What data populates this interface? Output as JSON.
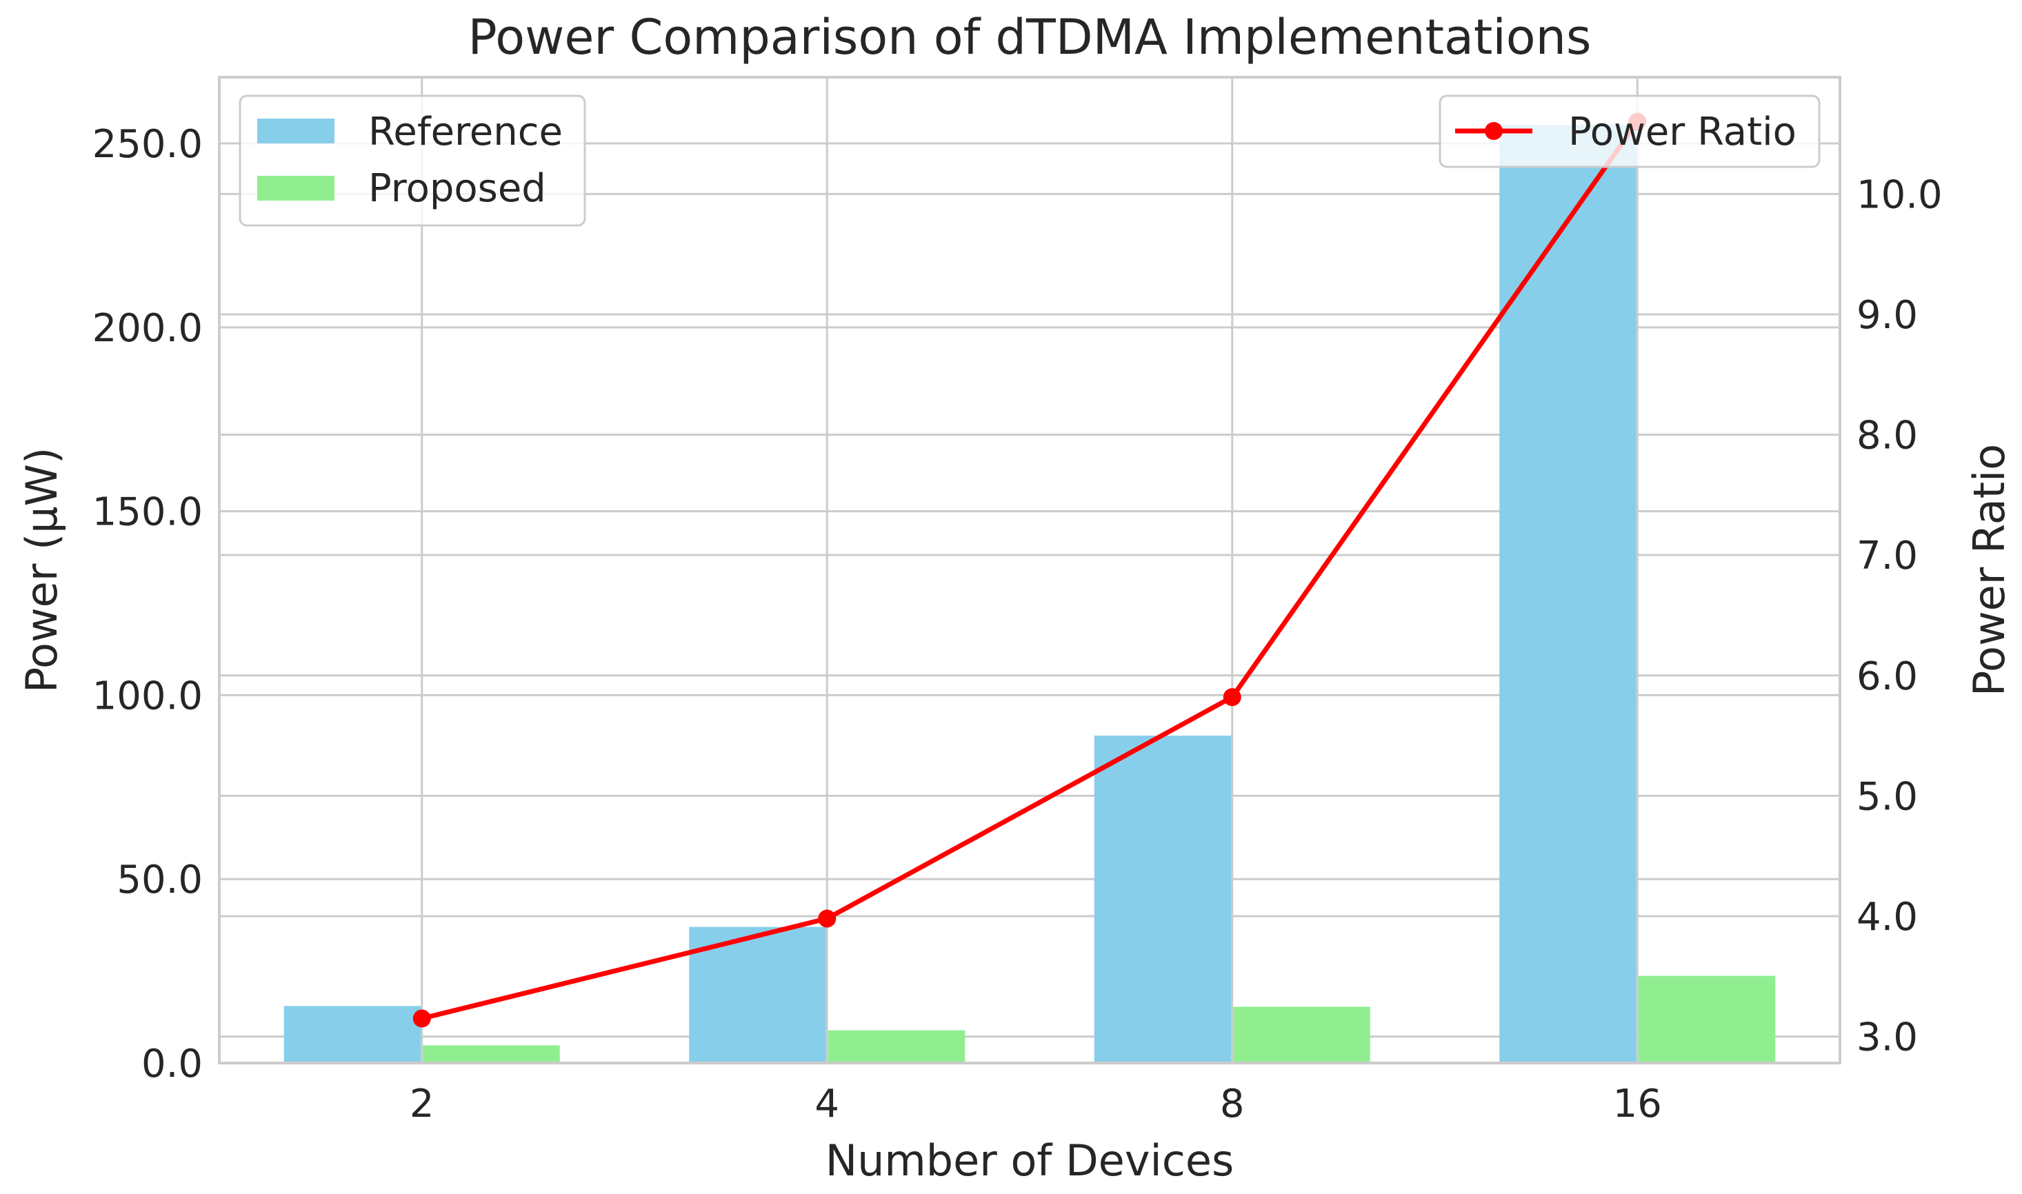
{
  "chart_data": {
    "type": "bar",
    "title": "Power Comparison of dTDMA Implementations",
    "xlabel": "Number of Devices",
    "ylabel": "Power (μW)",
    "y2label": "Power Ratio",
    "categories": [
      "2",
      "4",
      "8",
      "16"
    ],
    "series": [
      {
        "name": "Reference",
        "type": "bar",
        "axis": "left",
        "color": "#87ceeb",
        "values": [
          15.5,
          37,
          89,
          255
        ]
      },
      {
        "name": "Proposed",
        "type": "bar",
        "axis": "left",
        "color": "#90ee90",
        "values": [
          4.8,
          8.9,
          15.3,
          23.7
        ]
      },
      {
        "name": "Power Ratio",
        "type": "line",
        "axis": "right",
        "color": "#ff0000",
        "values": [
          3.15,
          3.98,
          5.82,
          10.6
        ]
      }
    ],
    "ylim": [
      0,
      268
    ],
    "y2lim": [
      2.78,
      10.97
    ],
    "yticks": [
      0,
      50,
      100,
      150,
      200,
      250
    ],
    "ytick_labels": [
      "0.0",
      "50.0",
      "100.0",
      "150.0",
      "200.0",
      "250.0"
    ],
    "y2ticks": [
      3,
      4,
      5,
      6,
      7,
      8,
      9,
      10
    ],
    "y2tick_labels": [
      "3.0",
      "4.0",
      "5.0",
      "6.0",
      "7.0",
      "8.0",
      "9.0",
      "10.0"
    ],
    "legend_left_position": "top-left",
    "legend_right_position": "top-right",
    "grid": true
  }
}
